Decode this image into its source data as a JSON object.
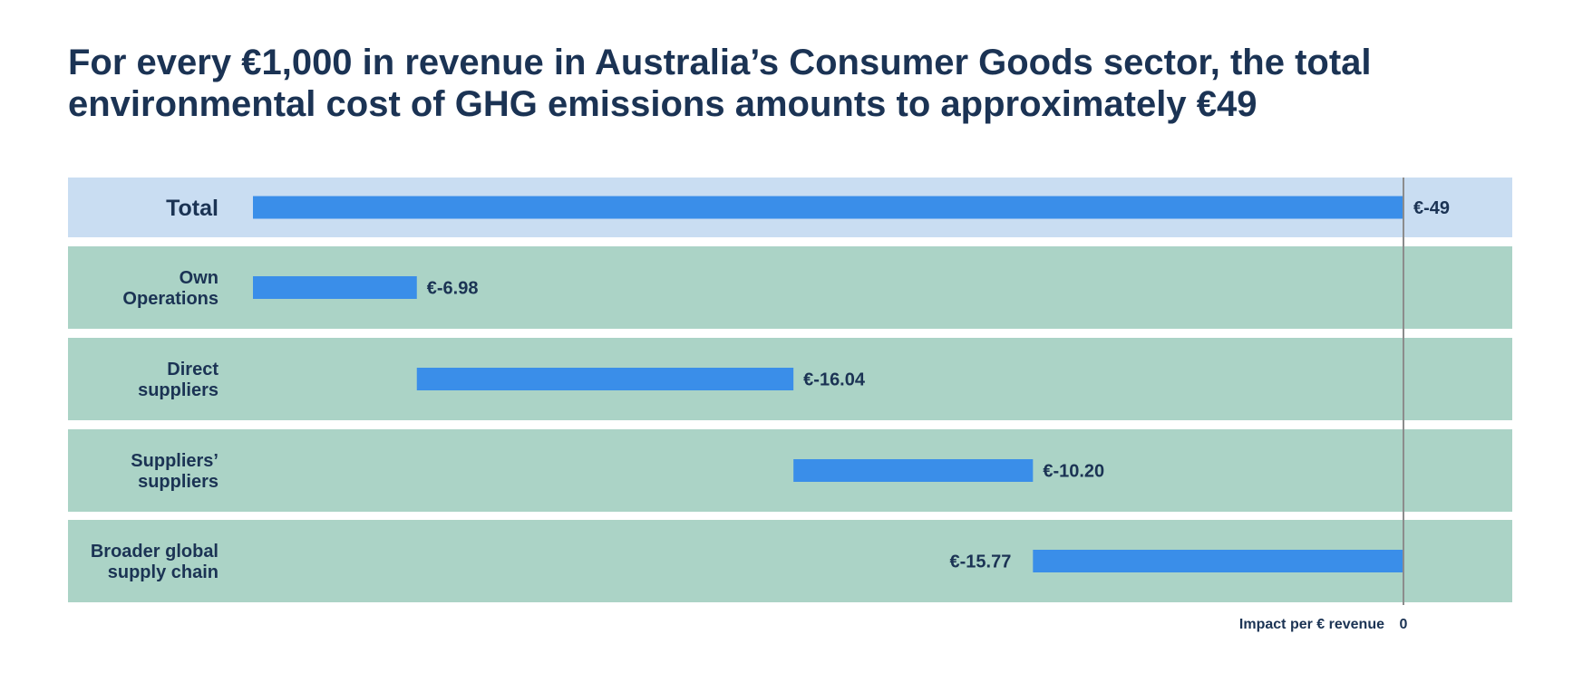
{
  "title": "For every €1,000 in revenue in Australia’s Consumer Goods sector, the total environmental cost of GHG emissions amounts to approximately €49",
  "colors": {
    "total_band": "#c9ddf2",
    "component_band": "#abd3c6",
    "bar": "#3a8ee9",
    "text": "#1b3354",
    "zero_line": "#8c8c8c"
  },
  "chart_data": {
    "type": "bar",
    "orientation": "horizontal",
    "style": "waterfall",
    "title": "For every €1,000 in revenue in Australia’s Consumer Goods sector, the total environmental cost of GHG emissions amounts to approximately €49",
    "categories": [
      "Total",
      "Own Operations",
      "Direct suppliers",
      "Suppliers’ suppliers",
      "Broader global supply chain"
    ],
    "category_lines": [
      [
        "Total"
      ],
      [
        "Own",
        "Operations"
      ],
      [
        "Direct",
        "suppliers"
      ],
      [
        "Suppliers’",
        "suppliers"
      ],
      [
        "Broader global",
        "supply chain"
      ]
    ],
    "values": [
      -49,
      -6.98,
      -16.04,
      -10.2,
      -15.77
    ],
    "data_labels": [
      "€-49",
      "€-6.98",
      "€-16.04",
      "€-10.20",
      "€-15.77"
    ],
    "xlabel": "Impact per € revenue",
    "zero_label": "0",
    "xlim": [
      -49,
      0
    ],
    "grid": false,
    "legend": "none"
  }
}
